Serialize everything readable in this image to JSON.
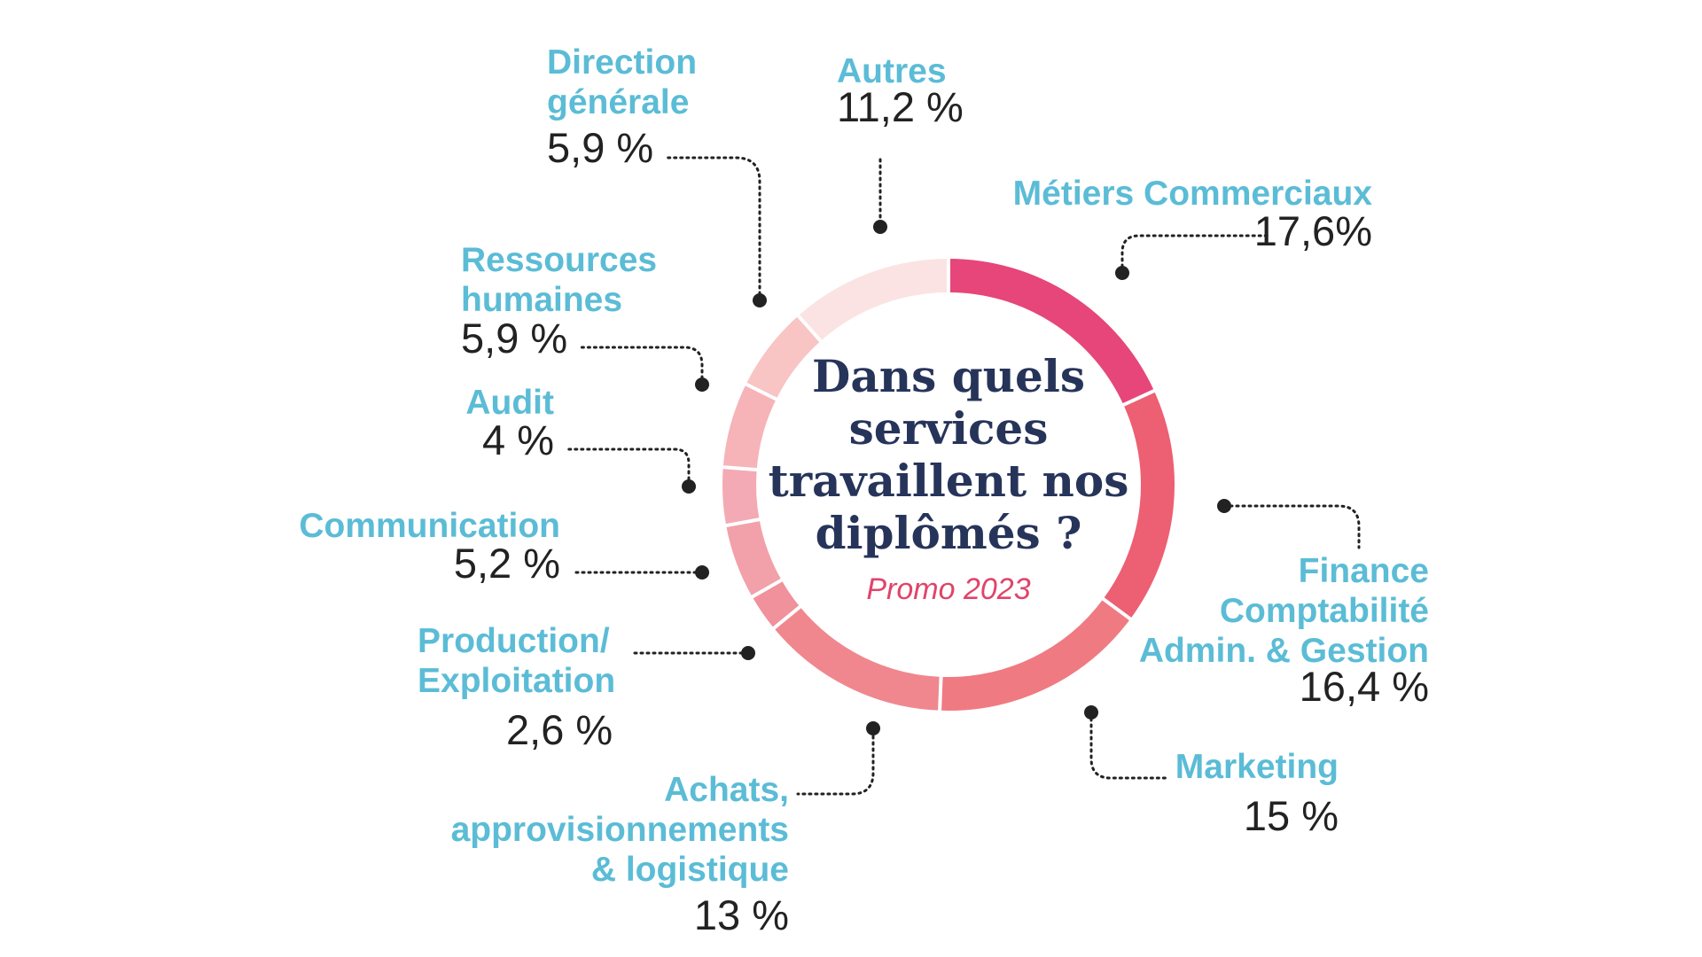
{
  "chart_data": {
    "type": "donut",
    "title": "Dans quels services travaillent nos diplômés ?",
    "subtitle": "Promo 2023",
    "slices": [
      {
        "label": "Métiers Commerciaux",
        "value": 17.6,
        "display_value": "17,6%",
        "color": "#e6467a"
      },
      {
        "label": "Finance Comptabilité Admin. & Gestion",
        "value": 16.4,
        "display_value": "16,4 %",
        "color": "#ed5f72"
      },
      {
        "label": "Marketing",
        "value": 15,
        "display_value": "15 %",
        "color": "#f07a82"
      },
      {
        "label": "Achats, approvisionnements & logistique",
        "value": 13,
        "display_value": "13 %",
        "color": "#f0878e"
      },
      {
        "label": "Production/ Exploitation",
        "value": 2.6,
        "display_value": "2,6 %",
        "color": "#f0919b"
      },
      {
        "label": "Communication",
        "value": 5.2,
        "display_value": "5,2 %",
        "color": "#f2a0aa"
      },
      {
        "label": "Audit",
        "value": 4,
        "display_value": "4 %",
        "color": "#f4aab4"
      },
      {
        "label": "Ressources humaines",
        "value": 5.9,
        "display_value": "5,9 %",
        "color": "#f6b3b8"
      },
      {
        "label": "Direction générale",
        "value": 5.9,
        "display_value": "5,9 %",
        "color": "#f8c4c4"
      },
      {
        "label": "Autres",
        "value": 11.2,
        "display_value": "11,2 %",
        "color": "#fbe3e3"
      }
    ]
  },
  "labels": {
    "metiers": {
      "name": "Métiers Commerciaux",
      "value": "17,6%"
    },
    "finance": {
      "name": "Finance\nComptabilité\nAdmin. & Gestion",
      "value": "16,4 %"
    },
    "marketing": {
      "name": "Marketing",
      "value": "15 %"
    },
    "achats": {
      "name": "Achats,\napprovisionnements\n& logistique",
      "value": "13 %"
    },
    "production": {
      "name": "Production/\nExploitation",
      "value": "2,6 %"
    },
    "communication": {
      "name": "Communication",
      "value": "5,2 %"
    },
    "audit": {
      "name": "Audit",
      "value": "4 %"
    },
    "rh": {
      "name": "Ressources\nhumaines",
      "value": "5,9 %"
    },
    "direction": {
      "name": "Direction\ngénérale",
      "value": "5,9 %"
    },
    "autres": {
      "name": "Autres",
      "value": "11,2 %"
    }
  },
  "center": {
    "title": "Dans quels\nservices\ntravaillent nos\ndiplômés ?",
    "subtitle": "Promo 2023"
  },
  "colors": {
    "label": "#5bbcd6",
    "title": "#27345a",
    "subtitle": "#e0446a",
    "leader": "#222222"
  }
}
